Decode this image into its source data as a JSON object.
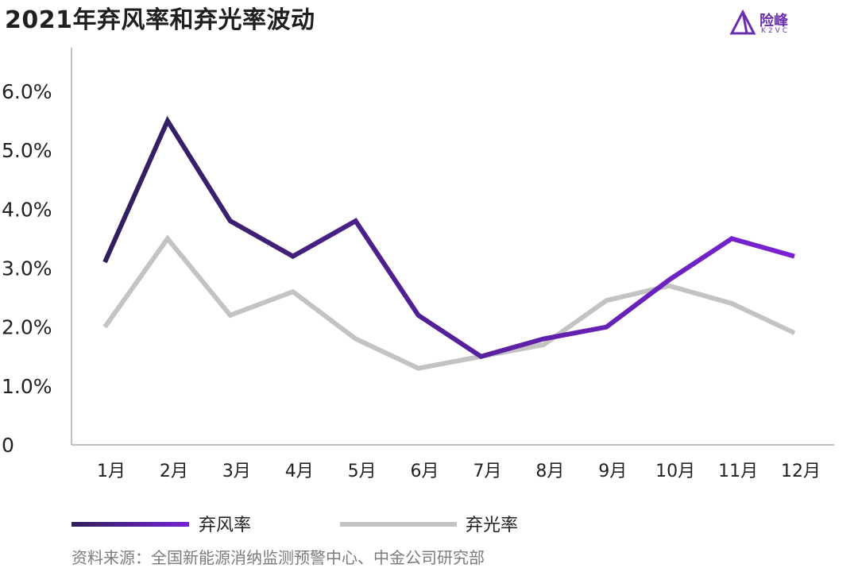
{
  "title": "2021年弃风率和弃光率波动",
  "logo": {
    "cn": "险峰",
    "en": "K2VC",
    "icon": "k2vc-triangle-logo-icon",
    "color": "#6a2fb0"
  },
  "source": "资料来源：全国新能源消纳监测预警中心、中金公司研究部",
  "chart_data": {
    "type": "line",
    "categories": [
      "1月",
      "2月",
      "3月",
      "4月",
      "5月",
      "6月",
      "7月",
      "8月",
      "9月",
      "10月",
      "11月",
      "12月"
    ],
    "series": [
      {
        "name": "弃风率",
        "values": [
          3.1,
          5.5,
          3.8,
          3.2,
          3.8,
          2.2,
          1.5,
          1.8,
          2.0,
          2.8,
          3.5,
          3.2
        ],
        "color_start": "#2f1f5a",
        "color_end": "#7a22d6"
      },
      {
        "name": "弃光率",
        "values": [
          2.0,
          3.5,
          2.2,
          2.6,
          1.8,
          1.3,
          1.5,
          1.7,
          2.45,
          2.7,
          2.4,
          1.9
        ],
        "color": "#c3c3c3"
      }
    ],
    "y_ticks": [
      "0",
      "1.0%",
      "2.0%",
      "3.0%",
      "4.0%",
      "5.0%",
      "6.0%"
    ],
    "ylim": [
      0,
      6
    ],
    "grid": false,
    "legend_position": "bottom"
  }
}
